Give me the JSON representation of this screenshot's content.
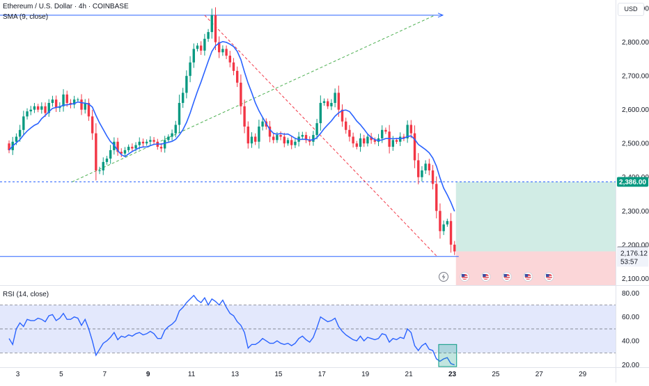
{
  "header": {
    "symbol_line": "Ethereum / U.S. Dollar · 4h · COINBASE",
    "indicator_line": "SMA (9, close)",
    "currency_button": "USD"
  },
  "rsi_panel": {
    "label": "RSI (14, close)"
  },
  "price_labels": {
    "entry": "2,386.00",
    "stop": "2,180.00",
    "last_price": "2,176.12",
    "countdown": "53:57"
  },
  "colors": {
    "up_candle": "#089981",
    "down_candle": "#f23645",
    "sma_line": "#2962ff",
    "rsi_line": "#2962ff",
    "trend_line": "#2962ff",
    "rsi_band": "#e3e8fc",
    "target_zone": "#d1ece5",
    "stop_zone": "#fbd6d8",
    "entry_badge": "#089981",
    "stop_badge": "#5d606b"
  },
  "event_icons": [
    "lightning-icon",
    "us-flag-icon",
    "us-flag-icon",
    "us-flag-icon",
    "us-flag-icon",
    "us-flag-icon"
  ],
  "chart_data": [
    {
      "type": "candlestick",
      "title": "Ethereum / U.S. Dollar · 4h · COINBASE",
      "x_ticks": [
        "3",
        "5",
        "7",
        "9",
        "11",
        "13",
        "15",
        "17",
        "19",
        "21",
        "23",
        "25",
        "27",
        "29"
      ],
      "y_ticks": [
        "2,100.00",
        "2,200.00",
        "2,300.00",
        "2,400.00",
        "2,500.00",
        "2,600.00",
        "2,700.00",
        "2,800.00",
        "2,900.00"
      ],
      "ylim": [
        2080,
        2925
      ],
      "x_start_day": 2.6,
      "candle_interval_days": 0.1667,
      "sma_period": 9,
      "closes": [
        2480,
        2505,
        2520,
        2540,
        2580,
        2595,
        2600,
        2610,
        2600,
        2610,
        2590,
        2620,
        2630,
        2605,
        2610,
        2645,
        2620,
        2615,
        2630,
        2630,
        2600,
        2620,
        2580,
        2530,
        2420,
        2420,
        2445,
        2455,
        2480,
        2505,
        2475,
        2470,
        2480,
        2490,
        2485,
        2495,
        2505,
        2500,
        2505,
        2510,
        2505,
        2490,
        2485,
        2510,
        2520,
        2530,
        2555,
        2620,
        2650,
        2700,
        2740,
        2780,
        2790,
        2775,
        2810,
        2830,
        2880,
        2800,
        2770,
        2780,
        2760,
        2740,
        2715,
        2680,
        2610,
        2550,
        2500,
        2520,
        2505,
        2550,
        2565,
        2550,
        2520,
        2510,
        2525,
        2520,
        2500,
        2510,
        2495,
        2505,
        2520,
        2525,
        2510,
        2505,
        2525,
        2560,
        2620,
        2625,
        2610,
        2620,
        2650,
        2600,
        2565,
        2540,
        2520,
        2500,
        2490,
        2515,
        2500,
        2520,
        2510,
        2505,
        2515,
        2540,
        2535,
        2490,
        2510,
        2505,
        2520,
        2515,
        2555,
        2530,
        2450,
        2400,
        2420,
        2440,
        2420,
        2380,
        2300,
        2240,
        2260,
        2270,
        2200,
        2180
      ],
      "annotations": {
        "horizontal_lines": [
          2880,
          2386,
          2165
        ],
        "target_zone": [
          2180,
          2386
        ],
        "stop_zone": [
          2080,
          2180
        ],
        "long_trend_line": {
          "from": [
            5.5,
            2386
          ],
          "to": [
            22.2,
            2880
          ]
        },
        "falling_wedge_line": {
          "from": [
            11.6,
            2880
          ],
          "to": [
            22.3,
            2165
          ]
        }
      }
    },
    {
      "type": "line",
      "title": "RSI (14, close)",
      "y_ticks": [
        "20.00",
        "40.00",
        "60.00",
        "80.00"
      ],
      "ylim": [
        18,
        86
      ],
      "levels": [
        70,
        50,
        30
      ],
      "values": [
        42,
        37,
        50,
        55,
        52,
        58,
        57,
        57,
        59,
        58,
        56,
        61,
        62,
        57,
        59,
        63,
        58,
        58,
        60,
        59,
        53,
        58,
        50,
        40,
        28,
        33,
        38,
        40,
        43,
        47,
        41,
        44,
        43,
        45,
        44,
        46,
        47,
        45,
        46,
        48,
        46,
        42,
        42,
        49,
        52,
        54,
        57,
        65,
        68,
        72,
        75,
        78,
        74,
        72,
        76,
        70,
        75,
        73,
        70,
        74,
        68,
        63,
        61,
        56,
        53,
        47,
        34,
        37,
        37,
        39,
        42,
        40,
        38,
        38,
        40,
        38,
        37,
        38,
        36,
        38,
        42,
        44,
        41,
        39,
        43,
        51,
        60,
        58,
        56,
        57,
        59,
        52,
        48,
        45,
        43,
        41,
        40,
        44,
        40,
        43,
        42,
        41,
        42,
        46,
        45,
        39,
        42,
        41,
        43,
        42,
        50,
        47,
        36,
        32,
        36,
        38,
        33,
        32,
        25,
        23,
        25,
        26,
        21,
        20
      ]
    }
  ]
}
